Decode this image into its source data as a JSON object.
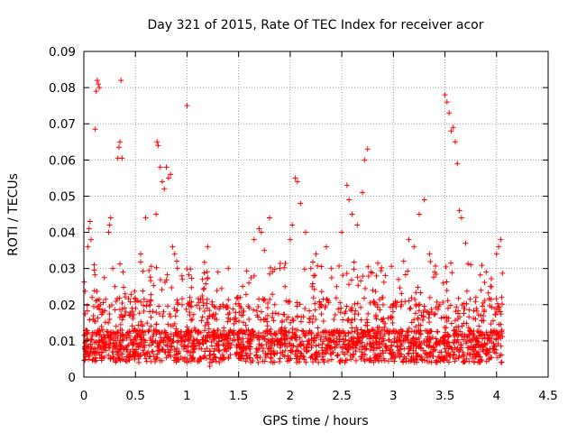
{
  "chart_data": {
    "type": "scatter",
    "title": "Day 321 of 2015, Rate Of TEC Index for receiver acor",
    "xlabel": "GPS time / hours",
    "ylabel": "ROTI / TECUs",
    "xlim": [
      0,
      4.5
    ],
    "ylim": [
      0,
      0.09
    ],
    "x_ticks": [
      0,
      0.5,
      1,
      1.5,
      2,
      2.5,
      3,
      3.5,
      4,
      4.5
    ],
    "x_tick_labels": [
      "0",
      "0.5",
      "1",
      "1.5",
      "2",
      "2.5",
      "3",
      "3.5",
      "4",
      "4.5"
    ],
    "y_ticks": [
      0,
      0.01,
      0.02,
      0.03,
      0.04,
      0.05,
      0.06,
      0.07,
      0.08,
      0.09
    ],
    "y_tick_labels": [
      "0",
      "0.01",
      "0.02",
      "0.03",
      "0.04",
      "0.05",
      "0.06",
      "0.07",
      "0.08",
      "0.09"
    ],
    "grid": true,
    "marker": "+",
    "series": [
      {
        "name": "ROTI",
        "color": "#ff0000",
        "points": [
          [
            0.01,
            0.0095
          ],
          [
            0.02,
            0.007
          ],
          [
            0.03,
            0.012
          ],
          [
            0.04,
            0.036
          ],
          [
            0.05,
            0.041
          ],
          [
            0.06,
            0.043
          ],
          [
            0.07,
            0.038
          ],
          [
            0.08,
            0.022
          ],
          [
            0.09,
            0.016
          ],
          [
            0.1,
            0.031
          ],
          [
            0.11,
            0.0685
          ],
          [
            0.12,
            0.079
          ],
          [
            0.13,
            0.082
          ],
          [
            0.14,
            0.081
          ],
          [
            0.15,
            0.08
          ],
          [
            0.16,
            0.02
          ],
          [
            0.17,
            0.014
          ],
          [
            0.18,
            0.018
          ],
          [
            0.2,
            0.011
          ],
          [
            0.22,
            0.009
          ],
          [
            0.24,
            0.04
          ],
          [
            0.25,
            0.042
          ],
          [
            0.26,
            0.044
          ],
          [
            0.28,
            0.03
          ],
          [
            0.3,
            0.012
          ],
          [
            0.33,
            0.0605
          ],
          [
            0.34,
            0.0635
          ],
          [
            0.35,
            0.065
          ],
          [
            0.36,
            0.082
          ],
          [
            0.37,
            0.0605
          ],
          [
            0.38,
            0.029
          ],
          [
            0.4,
            0.023
          ],
          [
            0.45,
            0.007
          ],
          [
            0.5,
            0.006
          ],
          [
            0.55,
            0.034
          ],
          [
            0.6,
            0.044
          ],
          [
            0.65,
            0.021
          ],
          [
            0.7,
            0.045
          ],
          [
            0.71,
            0.065
          ],
          [
            0.72,
            0.064
          ],
          [
            0.74,
            0.058
          ],
          [
            0.76,
            0.054
          ],
          [
            0.78,
            0.052
          ],
          [
            0.8,
            0.058
          ],
          [
            0.82,
            0.055
          ],
          [
            0.84,
            0.056
          ],
          [
            0.86,
            0.036
          ],
          [
            0.88,
            0.034
          ],
          [
            0.9,
            0.032
          ],
          [
            0.95,
            0.028
          ],
          [
            1.0,
            0.075
          ],
          [
            1.02,
            0.02
          ],
          [
            1.05,
            0.016
          ],
          [
            1.1,
            0.01
          ],
          [
            1.15,
            0.027
          ],
          [
            1.2,
            0.036
          ],
          [
            1.22,
            0.003
          ],
          [
            1.3,
            0.029
          ],
          [
            1.35,
            0.02
          ],
          [
            1.4,
            0.03
          ],
          [
            1.5,
            0.011
          ],
          [
            1.6,
            0.026
          ],
          [
            1.65,
            0.038
          ],
          [
            1.7,
            0.041
          ],
          [
            1.72,
            0.04
          ],
          [
            1.75,
            0.035
          ],
          [
            1.8,
            0.044
          ],
          [
            1.85,
            0.02
          ],
          [
            1.9,
            0.03
          ],
          [
            1.95,
            0.025
          ],
          [
            2.0,
            0.038
          ],
          [
            2.02,
            0.042
          ],
          [
            2.05,
            0.055
          ],
          [
            2.07,
            0.054
          ],
          [
            2.1,
            0.048
          ],
          [
            2.15,
            0.04
          ],
          [
            2.2,
            0.03
          ],
          [
            2.25,
            0.034
          ],
          [
            2.3,
            0.02
          ],
          [
            2.35,
            0.036
          ],
          [
            2.4,
            0.03
          ],
          [
            2.45,
            0.025
          ],
          [
            2.5,
            0.04
          ],
          [
            2.55,
            0.053
          ],
          [
            2.57,
            0.049
          ],
          [
            2.6,
            0.045
          ],
          [
            2.65,
            0.042
          ],
          [
            2.7,
            0.051
          ],
          [
            2.72,
            0.06
          ],
          [
            2.75,
            0.063
          ],
          [
            2.78,
            0.029
          ],
          [
            2.8,
            0.024
          ],
          [
            2.9,
            0.013
          ],
          [
            3.0,
            0.02
          ],
          [
            3.05,
            0.027
          ],
          [
            3.1,
            0.032
          ],
          [
            3.15,
            0.038
          ],
          [
            3.2,
            0.036
          ],
          [
            3.25,
            0.045
          ],
          [
            3.3,
            0.049
          ],
          [
            3.35,
            0.034
          ],
          [
            3.4,
            0.029
          ],
          [
            3.45,
            0.02
          ],
          [
            3.5,
            0.078
          ],
          [
            3.52,
            0.076
          ],
          [
            3.54,
            0.073
          ],
          [
            3.56,
            0.068
          ],
          [
            3.58,
            0.069
          ],
          [
            3.6,
            0.065
          ],
          [
            3.62,
            0.059
          ],
          [
            3.64,
            0.046
          ],
          [
            3.66,
            0.044
          ],
          [
            3.7,
            0.037
          ],
          [
            3.75,
            0.031
          ],
          [
            3.8,
            0.022
          ],
          [
            3.85,
            0.024
          ],
          [
            3.9,
            0.029
          ],
          [
            3.95,
            0.025
          ],
          [
            4.0,
            0.034
          ],
          [
            4.02,
            0.036
          ],
          [
            4.04,
            0.038
          ],
          [
            4.05,
            0.022
          ]
        ]
      }
    ],
    "background_cloud": {
      "description_free": true,
      "x_range": [
        0,
        4.06
      ],
      "dense_y_range": [
        0.004,
        0.025
      ],
      "count": 2200
    }
  }
}
